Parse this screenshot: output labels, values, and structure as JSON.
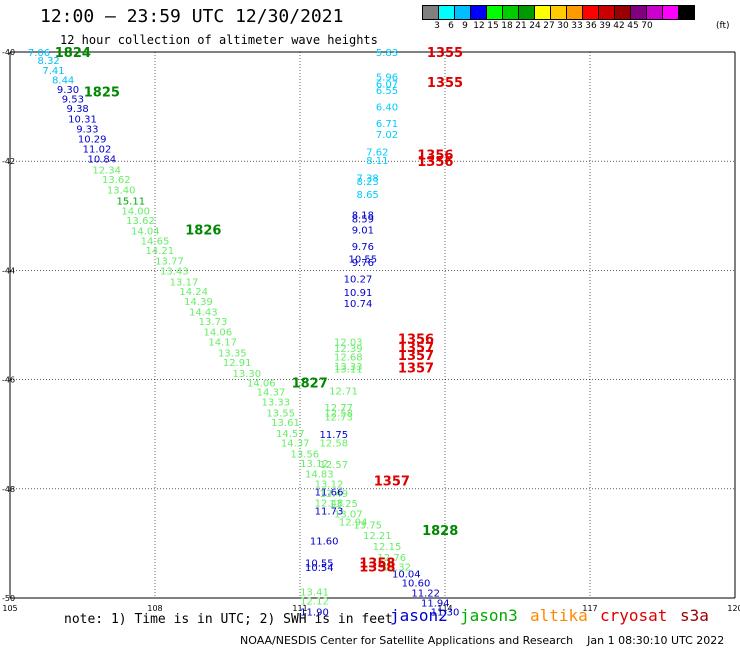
{
  "header": {
    "title": "12:00 – 23:59 UTC 12/30/2021",
    "subtitle": "12 hour collection of altimeter wave heights"
  },
  "legend": {
    "colors": [
      "#808080",
      "#00ffff",
      "#00bfff",
      "#0000ff",
      "#00ff00",
      "#00cc00",
      "#009900",
      "#ffff00",
      "#ffcc00",
      "#ff9900",
      "#ff0000",
      "#cc0000",
      "#990000",
      "#800080",
      "#cc00cc",
      "#ff00ff",
      "#000000"
    ],
    "labels": [
      "3",
      "6",
      "9",
      "12",
      "15",
      "18",
      "21",
      "24",
      "27",
      "30",
      "33",
      "36",
      "39",
      "42",
      "45",
      "70"
    ],
    "unit": "(ft)"
  },
  "axes": {
    "x_ticks": [
      "105",
      "108",
      "111",
      "114",
      "117",
      "120"
    ],
    "y_ticks": [
      "-40",
      "-42",
      "-44",
      "-46",
      "-48",
      "-50"
    ]
  },
  "footer": {
    "note": "note: 1) Time is in UTC; 2) SWH is in feet",
    "satellites": [
      {
        "name": "jason2",
        "color": "#0000cc"
      },
      {
        "name": "jason3",
        "color": "#00aa00"
      },
      {
        "name": "altika",
        "color": "#ff8800"
      },
      {
        "name": "cryosat",
        "color": "#dd0000"
      },
      {
        "name": "s3a",
        "color": "#990000"
      }
    ],
    "credit": "NOAA/NESDIS Center for Satellite Applications and Research",
    "timestamp": "Jan  1 08:30:10 UTC 2022"
  },
  "tracks": {
    "west": [
      {
        "lon": 105.6,
        "lat": -40.0,
        "v": "7.06",
        "c": "#00bfff"
      },
      {
        "lon": 105.8,
        "lat": -40.15,
        "v": "8.32",
        "c": "#00bfff"
      },
      {
        "lon": 105.9,
        "lat": -40.33,
        "v": "7.41",
        "c": "#00bfff"
      },
      {
        "lon": 106.1,
        "lat": -40.5,
        "v": "8.44",
        "c": "#00bfff"
      },
      {
        "lon": 106.2,
        "lat": -40.68,
        "v": "9.30",
        "c": "#0000cc"
      },
      {
        "lon": 106.3,
        "lat": -40.85,
        "v": "9.53",
        "c": "#0000cc"
      },
      {
        "lon": 106.4,
        "lat": -41.03,
        "v": "9.38",
        "c": "#0000cc"
      },
      {
        "lon": 106.5,
        "lat": -41.22,
        "v": "10.31",
        "c": "#0000cc"
      },
      {
        "lon": 106.6,
        "lat": -41.4,
        "v": "9.33",
        "c": "#0000cc"
      },
      {
        "lon": 106.7,
        "lat": -41.58,
        "v": "10.29",
        "c": "#0000cc"
      },
      {
        "lon": 106.8,
        "lat": -41.77,
        "v": "11.02",
        "c": "#0000cc"
      },
      {
        "lon": 106.9,
        "lat": -41.95,
        "v": "10.84",
        "c": "#0000cc"
      },
      {
        "lon": 107.0,
        "lat": -42.15,
        "v": "12.34",
        "c": "#66ee66"
      },
      {
        "lon": 107.2,
        "lat": -42.33,
        "v": "13.62",
        "c": "#66ee66"
      },
      {
        "lon": 107.3,
        "lat": -42.52,
        "v": "13.40",
        "c": "#66ee66"
      },
      {
        "lon": 107.5,
        "lat": -42.72,
        "v": "15.11",
        "c": "#00aa00"
      },
      {
        "lon": 107.6,
        "lat": -42.9,
        "v": "14.00",
        "c": "#66ee66"
      },
      {
        "lon": 107.7,
        "lat": -43.08,
        "v": "13.62",
        "c": "#66ee66"
      },
      {
        "lon": 107.8,
        "lat": -43.27,
        "v": "14.04",
        "c": "#66ee66"
      },
      {
        "lon": 108.0,
        "lat": -43.45,
        "v": "14.65",
        "c": "#66ee66"
      },
      {
        "lon": 108.1,
        "lat": -43.63,
        "v": "14.21",
        "c": "#66ee66"
      },
      {
        "lon": 108.3,
        "lat": -43.82,
        "v": "13.77",
        "c": "#66ee66"
      },
      {
        "lon": 108.4,
        "lat": -44.0,
        "v": "13.43",
        "c": "#66ee66"
      },
      {
        "lon": 108.6,
        "lat": -44.2,
        "v": "13.17",
        "c": "#66ee66"
      },
      {
        "lon": 108.8,
        "lat": -44.38,
        "v": "14.24",
        "c": "#66ee66"
      },
      {
        "lon": 108.9,
        "lat": -44.56,
        "v": "14.39",
        "c": "#66ee66"
      },
      {
        "lon": 109.0,
        "lat": -44.75,
        "v": "14.43",
        "c": "#66ee66"
      },
      {
        "lon": 109.2,
        "lat": -44.93,
        "v": "13.73",
        "c": "#66ee66"
      },
      {
        "lon": 109.3,
        "lat": -45.12,
        "v": "14.06",
        "c": "#66ee66"
      },
      {
        "lon": 109.4,
        "lat": -45.3,
        "v": "14.17",
        "c": "#66ee66"
      },
      {
        "lon": 109.6,
        "lat": -45.5,
        "v": "13.35",
        "c": "#66ee66"
      },
      {
        "lon": 109.7,
        "lat": -45.68,
        "v": "12.91",
        "c": "#66ee66"
      },
      {
        "lon": 109.9,
        "lat": -45.88,
        "v": "13.30",
        "c": "#66ee66"
      },
      {
        "lon": 110.2,
        "lat": -46.05,
        "v": "14.06",
        "c": "#66ee66"
      },
      {
        "lon": 110.4,
        "lat": -46.22,
        "v": "14.37",
        "c": "#66ee66"
      },
      {
        "lon": 110.5,
        "lat": -46.4,
        "v": "13.33",
        "c": "#66ee66"
      },
      {
        "lon": 110.6,
        "lat": -46.6,
        "v": "13.55",
        "c": "#66ee66"
      },
      {
        "lon": 110.7,
        "lat": -46.78,
        "v": "13.61",
        "c": "#66ee66"
      },
      {
        "lon": 110.8,
        "lat": -46.98,
        "v": "14.57",
        "c": "#66ee66"
      },
      {
        "lon": 110.9,
        "lat": -47.15,
        "v": "14.37",
        "c": "#66ee66"
      },
      {
        "lon": 111.1,
        "lat": -47.35,
        "v": "13.56",
        "c": "#66ee66"
      },
      {
        "lon": 111.3,
        "lat": -47.53,
        "v": "13.12",
        "c": "#66ee66"
      },
      {
        "lon": 111.4,
        "lat": -47.72,
        "v": "14.83",
        "c": "#66ee66"
      },
      {
        "lon": 111.6,
        "lat": -47.9,
        "v": "13.12",
        "c": "#66ee66"
      },
      {
        "lon": 111.7,
        "lat": -48.08,
        "v": "13.49",
        "c": "#66ee66"
      },
      {
        "lon": 111.9,
        "lat": -48.26,
        "v": "13.25",
        "c": "#66ee66"
      },
      {
        "lon": 112.0,
        "lat": -48.45,
        "v": "13.07",
        "c": "#66ee66"
      },
      {
        "lon": 112.1,
        "lat": -48.6,
        "v": "12.94",
        "c": "#66ee66"
      },
      {
        "lon": 112.4,
        "lat": -48.65,
        "v": "13.75",
        "c": "#66ee66"
      },
      {
        "lon": 112.6,
        "lat": -48.85,
        "v": "12.21",
        "c": "#66ee66"
      },
      {
        "lon": 112.8,
        "lat": -49.05,
        "v": "12.15",
        "c": "#66ee66"
      },
      {
        "lon": 112.9,
        "lat": -49.25,
        "v": "12.76",
        "c": "#66ee66"
      },
      {
        "lon": 113.0,
        "lat": -49.42,
        "v": "12.32",
        "c": "#66ee66"
      },
      {
        "lon": 113.2,
        "lat": -49.55,
        "v": "10.04",
        "c": "#0000cc"
      },
      {
        "lon": 113.4,
        "lat": -49.72,
        "v": "10.60",
        "c": "#0000cc"
      },
      {
        "lon": 113.6,
        "lat": -49.9,
        "v": "11.22",
        "c": "#0000cc"
      },
      {
        "lon": 113.8,
        "lat": -50.08,
        "v": "11.94",
        "c": "#0000cc"
      },
      {
        "lon": 114.0,
        "lat": -50.25,
        "v": "11.30",
        "c": "#0000cc"
      }
    ],
    "east": [
      {
        "lon": 112.8,
        "lat": -40.0,
        "v": "5.83",
        "c": "#00ccff"
      },
      {
        "lon": 112.8,
        "lat": -40.45,
        "v": "5.96",
        "c": "#00ccff"
      },
      {
        "lon": 112.8,
        "lat": -40.58,
        "v": "6.07",
        "c": "#00ccff"
      },
      {
        "lon": 112.8,
        "lat": -40.7,
        "v": "6.55",
        "c": "#00ccff"
      },
      {
        "lon": 112.8,
        "lat": -41.0,
        "v": "6.40",
        "c": "#00ccff"
      },
      {
        "lon": 112.8,
        "lat": -41.3,
        "v": "6.71",
        "c": "#00ccff"
      },
      {
        "lon": 112.8,
        "lat": -41.5,
        "v": "7.02",
        "c": "#00ccff"
      },
      {
        "lon": 112.6,
        "lat": -41.82,
        "v": "7.62",
        "c": "#00ccff"
      },
      {
        "lon": 112.6,
        "lat": -41.98,
        "v": "8.11",
        "c": "#00ccff"
      },
      {
        "lon": 112.4,
        "lat": -42.3,
        "v": "7.38",
        "c": "#00ccff"
      },
      {
        "lon": 112.4,
        "lat": -42.36,
        "v": "8.23",
        "c": "#00ccff"
      },
      {
        "lon": 112.4,
        "lat": -42.6,
        "v": "8.65",
        "c": "#00ccff"
      },
      {
        "lon": 112.3,
        "lat": -42.98,
        "v": "8.18",
        "c": "#0000cc"
      },
      {
        "lon": 112.3,
        "lat": -43.05,
        "v": "8.59",
        "c": "#0000cc"
      },
      {
        "lon": 112.3,
        "lat": -43.25,
        "v": "9.01",
        "c": "#0000cc"
      },
      {
        "lon": 112.3,
        "lat": -43.55,
        "v": "9.76",
        "c": "#0000cc"
      },
      {
        "lon": 112.3,
        "lat": -43.78,
        "v": "10.55",
        "c": "#0000cc"
      },
      {
        "lon": 112.3,
        "lat": -43.85,
        "v": "9.76",
        "c": "#0000cc"
      },
      {
        "lon": 112.2,
        "lat": -44.15,
        "v": "10.27",
        "c": "#0000cc"
      },
      {
        "lon": 112.2,
        "lat": -44.4,
        "v": "10.91",
        "c": "#0000cc"
      },
      {
        "lon": 112.2,
        "lat": -44.6,
        "v": "10.74",
        "c": "#0000cc"
      },
      {
        "lon": 112.0,
        "lat": -45.3,
        "v": "12.03",
        "c": "#66ee66"
      },
      {
        "lon": 112.0,
        "lat": -45.42,
        "v": "12.39",
        "c": "#66ee66"
      },
      {
        "lon": 112.0,
        "lat": -45.58,
        "v": "12.68",
        "c": "#66ee66"
      },
      {
        "lon": 112.0,
        "lat": -45.75,
        "v": "13.33",
        "c": "#66ee66"
      },
      {
        "lon": 112.0,
        "lat": -45.8,
        "v": "13.11",
        "c": "#66ee66"
      },
      {
        "lon": 111.9,
        "lat": -46.2,
        "v": "12.71",
        "c": "#66ee66"
      },
      {
        "lon": 111.8,
        "lat": -46.5,
        "v": "12.77",
        "c": "#66ee66"
      },
      {
        "lon": 111.8,
        "lat": -46.6,
        "v": "12.58",
        "c": "#66ee66"
      },
      {
        "lon": 111.8,
        "lat": -46.68,
        "v": "12.73",
        "c": "#66ee66"
      },
      {
        "lon": 111.7,
        "lat": -47.0,
        "v": "11.75",
        "c": "#0000cc"
      },
      {
        "lon": 111.7,
        "lat": -47.15,
        "v": "12.58",
        "c": "#66ee66"
      },
      {
        "lon": 111.7,
        "lat": -47.55,
        "v": "12.57",
        "c": "#66ee66"
      },
      {
        "lon": 111.6,
        "lat": -48.05,
        "v": "11.66",
        "c": "#0000cc"
      },
      {
        "lon": 111.6,
        "lat": -48.25,
        "v": "12.48",
        "c": "#66ee66"
      },
      {
        "lon": 111.6,
        "lat": -48.4,
        "v": "11.73",
        "c": "#0000cc"
      },
      {
        "lon": 111.5,
        "lat": -48.95,
        "v": "11.60",
        "c": "#0000cc"
      },
      {
        "lon": 111.4,
        "lat": -49.35,
        "v": "10.55",
        "c": "#0000cc"
      },
      {
        "lon": 111.4,
        "lat": -49.43,
        "v": "10.54",
        "c": "#0000cc"
      },
      {
        "lon": 111.3,
        "lat": -49.88,
        "v": "13.41",
        "c": "#66ee66"
      },
      {
        "lon": 111.3,
        "lat": -50.05,
        "v": "12.12",
        "c": "#66ee66"
      },
      {
        "lon": 111.3,
        "lat": -50.25,
        "v": "11.90",
        "c": "#0000cc"
      }
    ]
  },
  "time_labels": [
    {
      "lon": 106.3,
      "lat": -40.0,
      "t": "1824",
      "c": "#008800"
    },
    {
      "lon": 106.9,
      "lat": -40.72,
      "t": "1825",
      "c": "#008800"
    },
    {
      "lon": 109.0,
      "lat": -43.25,
      "t": "1826",
      "c": "#008800"
    },
    {
      "lon": 111.2,
      "lat": -46.05,
      "t": "1827",
      "c": "#008800"
    },
    {
      "lon": 113.9,
      "lat": -48.75,
      "t": "1828",
      "c": "#008800"
    },
    {
      "lon": 114.0,
      "lat": -40.0,
      "t": "1355",
      "c": "#dd0000"
    },
    {
      "lon": 114.0,
      "lat": -40.55,
      "t": "1355",
      "c": "#dd0000"
    },
    {
      "lon": 113.8,
      "lat": -41.88,
      "t": "1356",
      "c": "#dd0000"
    },
    {
      "lon": 113.8,
      "lat": -42.0,
      "t": "1356",
      "c": "#dd0000"
    },
    {
      "lon": 113.4,
      "lat": -45.25,
      "t": "1356",
      "c": "#dd0000"
    },
    {
      "lon": 113.4,
      "lat": -45.4,
      "t": "1357",
      "c": "#dd0000"
    },
    {
      "lon": 113.4,
      "lat": -45.55,
      "t": "1357",
      "c": "#dd0000"
    },
    {
      "lon": 113.4,
      "lat": -45.78,
      "t": "1357",
      "c": "#dd0000"
    },
    {
      "lon": 112.9,
      "lat": -47.85,
      "t": "1357",
      "c": "#dd0000"
    },
    {
      "lon": 112.6,
      "lat": -49.35,
      "t": "1358",
      "c": "#dd0000"
    },
    {
      "lon": 112.6,
      "lat": -49.42,
      "t": "1358",
      "c": "#dd0000"
    }
  ]
}
